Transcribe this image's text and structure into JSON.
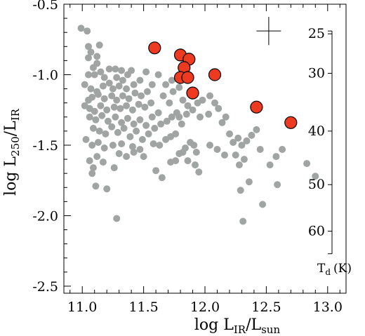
{
  "chart_data": {
    "type": "scatter",
    "xlabel": {
      "main": "log L",
      "sub1": "IR",
      "mid": "/L",
      "sub2": "sun"
    },
    "ylabel": {
      "main": "log L",
      "sub1": "250",
      "mid": "/L",
      "sub2": "IR"
    },
    "xlim": [
      10.85,
      13.15
    ],
    "ylim": [
      -2.55,
      -0.5
    ],
    "xticks": [
      11.0,
      11.5,
      12.0,
      12.5,
      13.0
    ],
    "xtick_labels": [
      "11.0",
      "11.5",
      "12.0",
      "12.5",
      "13.0"
    ],
    "yticks": [
      -0.5,
      -1.0,
      -1.5,
      -2.0,
      -2.5
    ],
    "ytick_labels": [
      "-0.5",
      "-1.0",
      "-1.5",
      "-2.0",
      "-2.5"
    ],
    "grid": false,
    "series": [
      {
        "color": "#a0a5a3",
        "points": [
          [
            10.99,
            -0.67
          ],
          [
            11.04,
            -0.69
          ],
          [
            11.05,
            -0.8
          ],
          [
            11.07,
            -0.84
          ],
          [
            11.12,
            -0.87
          ],
          [
            11.05,
            -0.88
          ],
          [
            11.14,
            -0.79
          ],
          [
            11.12,
            -0.92
          ],
          [
            11.09,
            -0.95
          ],
          [
            11.05,
            -1.0
          ],
          [
            11.1,
            -1.0
          ],
          [
            11.15,
            -0.98
          ],
          [
            11.18,
            -1.02
          ],
          [
            11.22,
            -0.96
          ],
          [
            11.27,
            -0.96
          ],
          [
            11.32,
            -0.97
          ],
          [
            11.28,
            -1.02
          ],
          [
            11.33,
            -1.04
          ],
          [
            11.37,
            -1.0
          ],
          [
            11.4,
            -0.97
          ],
          [
            11.22,
            -1.06
          ],
          [
            11.02,
            -1.07
          ],
          [
            11.07,
            -1.1
          ],
          [
            11.12,
            -1.12
          ],
          [
            11.17,
            -1.08
          ],
          [
            11.25,
            -1.1
          ],
          [
            11.3,
            -1.08
          ],
          [
            11.36,
            -1.1
          ],
          [
            11.42,
            -1.07
          ],
          [
            11.47,
            -1.04
          ],
          [
            11.02,
            -1.22
          ],
          [
            11.05,
            -1.18
          ],
          [
            11.08,
            -1.16
          ],
          [
            11.13,
            -1.14
          ],
          [
            11.18,
            -1.17
          ],
          [
            11.24,
            -1.15
          ],
          [
            11.28,
            -1.18
          ],
          [
            11.33,
            -1.15
          ],
          [
            11.38,
            -1.17
          ],
          [
            11.43,
            -1.13
          ],
          [
            11.48,
            -1.15
          ],
          [
            11.53,
            -1.12
          ],
          [
            11.06,
            -1.24
          ],
          [
            11.1,
            -1.26
          ],
          [
            11.15,
            -1.22
          ],
          [
            11.2,
            -1.25
          ],
          [
            11.26,
            -1.23
          ],
          [
            11.31,
            -1.24
          ],
          [
            11.36,
            -1.22
          ],
          [
            11.41,
            -1.25
          ],
          [
            11.46,
            -1.21
          ],
          [
            11.51,
            -1.23
          ],
          [
            11.56,
            -1.2
          ],
          [
            11.06,
            -1.3
          ],
          [
            11.11,
            -1.32
          ],
          [
            11.16,
            -1.29
          ],
          [
            11.21,
            -1.33
          ],
          [
            11.27,
            -1.3
          ],
          [
            11.32,
            -1.34
          ],
          [
            11.37,
            -1.31
          ],
          [
            11.42,
            -1.35
          ],
          [
            11.47,
            -1.32
          ],
          [
            11.52,
            -1.36
          ],
          [
            11.57,
            -1.3
          ],
          [
            11.62,
            -1.27
          ],
          [
            11.09,
            -1.38
          ],
          [
            11.14,
            -1.4
          ],
          [
            11.19,
            -1.42
          ],
          [
            11.24,
            -1.37
          ],
          [
            11.29,
            -1.41
          ],
          [
            11.34,
            -1.38
          ],
          [
            11.39,
            -1.44
          ],
          [
            11.44,
            -1.4
          ],
          [
            11.49,
            -1.46
          ],
          [
            11.54,
            -1.42
          ],
          [
            11.59,
            -1.38
          ],
          [
            11.64,
            -1.35
          ],
          [
            11.03,
            -1.46
          ],
          [
            11.08,
            -1.5
          ],
          [
            11.13,
            -1.48
          ],
          [
            11.18,
            -1.52
          ],
          [
            11.25,
            -1.5
          ],
          [
            11.32,
            -1.49
          ],
          [
            11.41,
            -1.51
          ],
          [
            11.47,
            -1.53
          ],
          [
            11.58,
            -1.49
          ],
          [
            11.63,
            -1.5
          ],
          [
            11.68,
            -1.46
          ],
          [
            11.72,
            -1.44
          ],
          [
            11.76,
            -1.42
          ],
          [
            11.69,
            -1.33
          ],
          [
            11.73,
            -1.3
          ],
          [
            11.77,
            -1.27
          ],
          [
            11.71,
            -1.2
          ],
          [
            11.66,
            -1.15
          ],
          [
            11.74,
            -1.12
          ],
          [
            11.68,
            -1.07
          ],
          [
            11.73,
            -1.04
          ],
          [
            11.79,
            -1.09
          ],
          [
            11.82,
            -1.18
          ],
          [
            11.86,
            -1.22
          ],
          [
            11.9,
            -1.25
          ],
          [
            11.94,
            -1.2
          ],
          [
            11.98,
            -1.18
          ],
          [
            12.04,
            -1.15
          ],
          [
            12.08,
            -1.2
          ],
          [
            12.11,
            -1.24
          ],
          [
            12.03,
            -1.28
          ],
          [
            11.96,
            -1.3
          ],
          [
            11.12,
            -1.58
          ],
          [
            11.17,
            -1.62
          ],
          [
            11.26,
            -1.66
          ],
          [
            11.06,
            -1.61
          ],
          [
            11.09,
            -1.66
          ],
          [
            11.08,
            -1.7
          ],
          [
            11.3,
            -1.56
          ],
          [
            11.36,
            -1.58
          ],
          [
            11.42,
            -1.55
          ],
          [
            11.11,
            -1.79
          ],
          [
            11.2,
            -1.81
          ],
          [
            11.28,
            -2.02
          ],
          [
            11.5,
            -1.58
          ],
          [
            11.6,
            -1.68
          ],
          [
            11.65,
            -1.73
          ],
          [
            11.72,
            -1.62
          ],
          [
            11.76,
            -1.61
          ],
          [
            11.79,
            -1.56
          ],
          [
            11.82,
            -1.55
          ],
          [
            11.84,
            -1.52
          ],
          [
            11.88,
            -1.48
          ],
          [
            11.91,
            -1.5
          ],
          [
            11.93,
            -1.55
          ],
          [
            11.86,
            -1.61
          ],
          [
            11.92,
            -1.64
          ],
          [
            11.95,
            -1.69
          ],
          [
            11.81,
            -1.35
          ],
          [
            11.79,
            -1.3
          ],
          [
            11.85,
            -1.28
          ],
          [
            12.14,
            -1.34
          ],
          [
            12.17,
            -1.3
          ],
          [
            12.2,
            -1.42
          ],
          [
            12.04,
            -1.5
          ],
          [
            12.1,
            -1.53
          ],
          [
            12.16,
            -1.57
          ],
          [
            12.23,
            -1.48
          ],
          [
            12.27,
            -1.45
          ],
          [
            12.3,
            -1.5
          ],
          [
            12.34,
            -1.47
          ],
          [
            12.38,
            -1.43
          ],
          [
            12.42,
            -1.39
          ],
          [
            12.25,
            -1.57
          ],
          [
            12.32,
            -1.6
          ],
          [
            12.28,
            -1.64
          ],
          [
            12.45,
            -1.53
          ],
          [
            12.36,
            -1.76
          ],
          [
            12.29,
            -1.82
          ],
          [
            12.31,
            -2.04
          ],
          [
            12.47,
            -1.92
          ],
          [
            12.58,
            -1.58
          ],
          [
            12.63,
            -1.53
          ],
          [
            12.53,
            -1.64
          ],
          [
            12.59,
            -1.78
          ],
          [
            12.83,
            -1.63
          ],
          [
            12.9,
            -1.72
          ],
          [
            11.62,
            -1.0
          ],
          [
            11.57,
            -1.07
          ],
          [
            11.52,
            -0.98
          ]
        ]
      },
      {
        "color": "#ee3a20",
        "points": [
          [
            11.59,
            -0.81
          ],
          [
            11.8,
            -0.86
          ],
          [
            11.87,
            -0.89
          ],
          [
            11.83,
            -0.95
          ],
          [
            11.8,
            -1.02
          ],
          [
            11.86,
            -1.02
          ],
          [
            11.9,
            -1.13
          ],
          [
            12.08,
            -1.0
          ],
          [
            12.42,
            -1.23
          ],
          [
            12.7,
            -1.34
          ]
        ]
      }
    ],
    "error_bar": {
      "x": 12.52,
      "y": -0.69,
      "xerr": 0.1,
      "yerr": 0.1
    },
    "td_scale": {
      "label": "T",
      "sub": "d",
      "unit": "(K)",
      "ticks": [
        {
          "label": "25",
          "y": -0.71
        },
        {
          "label": "30",
          "y": -0.99
        },
        {
          "label": "40",
          "y": -1.4
        },
        {
          "label": "50",
          "y": -1.78
        },
        {
          "label": "60",
          "y": -2.11
        }
      ],
      "range": [
        -0.69,
        -2.27
      ]
    }
  }
}
